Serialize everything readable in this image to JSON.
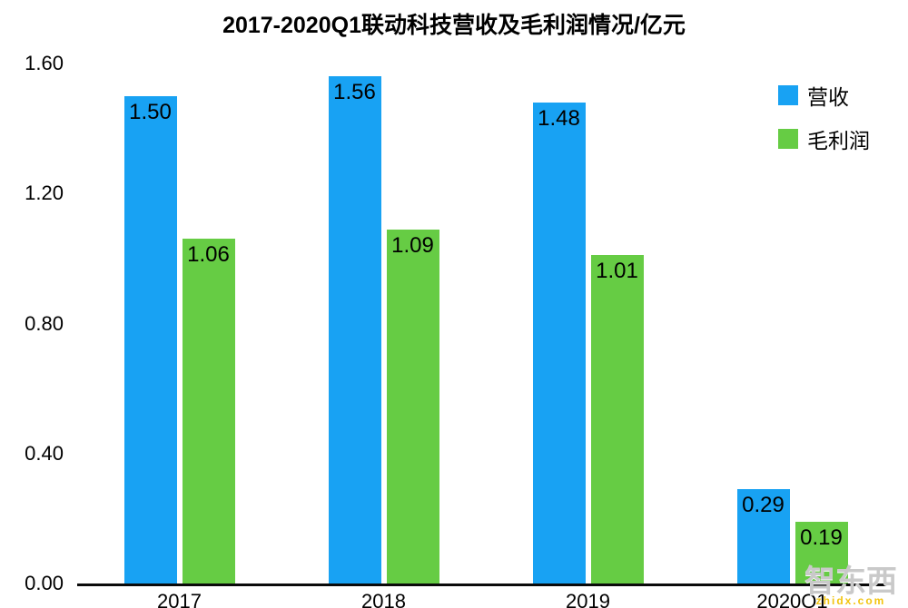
{
  "chart_data": {
    "type": "bar",
    "title": "2017-2020Q1联动科技营收及毛利润情况/亿元",
    "categories": [
      "2017",
      "2018",
      "2019",
      "2020Q1"
    ],
    "series": [
      {
        "name": "营收",
        "color": "#18a2f3",
        "values": [
          1.5,
          1.56,
          1.48,
          0.29
        ]
      },
      {
        "name": "毛利润",
        "color": "#66cc44",
        "values": [
          1.06,
          1.09,
          1.01,
          0.19
        ]
      }
    ],
    "ylim": [
      0,
      1.6
    ],
    "yticks": [
      0.0,
      0.4,
      0.8,
      1.2,
      1.6
    ],
    "ytick_labels": [
      "0.00",
      "0.40",
      "0.80",
      "1.20",
      "1.60"
    ],
    "grid": false,
    "legend_position": "top-right",
    "value_labels": "inside-top"
  },
  "watermark": {
    "main": "智东西",
    "sub": "zhidx.com"
  }
}
